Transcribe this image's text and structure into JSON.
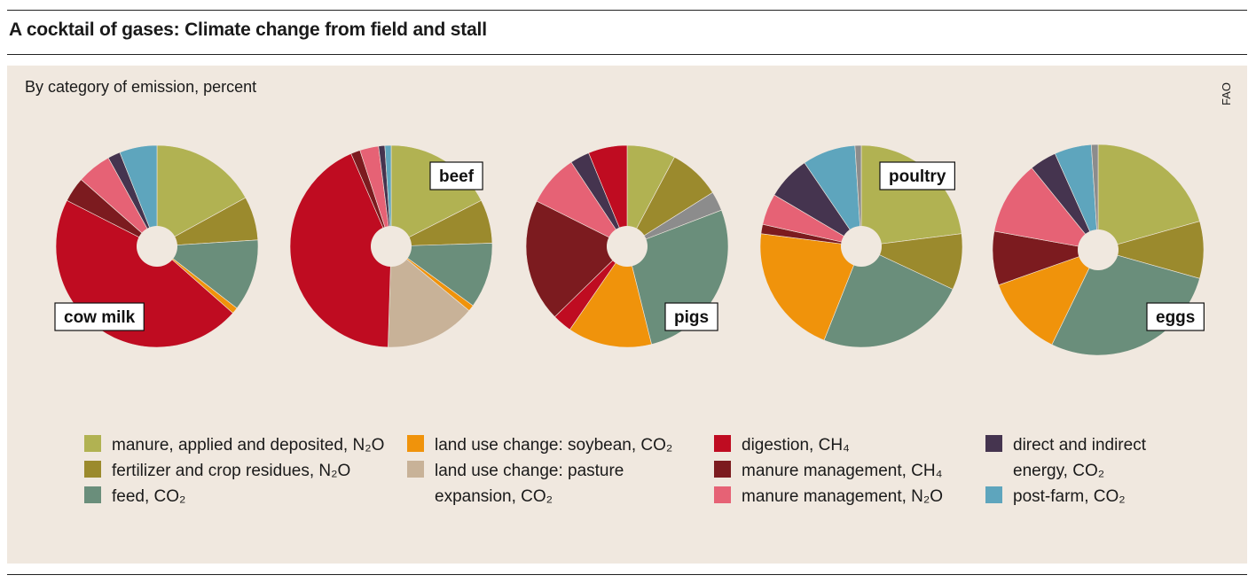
{
  "title": "A cocktail of gases: Climate change from field and stall",
  "subtitle": "By category of emission, percent",
  "source": "FAO",
  "colors": {
    "manure_n2o": "#b1b252",
    "fertilizer_n2o": "#9b8a2d",
    "feed_co2": "#6a8e7b",
    "soybean_co2": "#f0930b",
    "pasture_co2": "#c8b298",
    "digestion_ch4": "#bf0c21",
    "manure_mgmt_ch4": "#7c1b1f",
    "manure_mgmt_n2o": "#e66275",
    "energy_co2": "#45344f",
    "postfarm_co2": "#5ea5bd",
    "other": "#8c8c8c"
  },
  "legend": {
    "col1": [
      {
        "key": "manure_n2o",
        "label": "manure, applied and deposited, N₂O"
      },
      {
        "key": "fertilizer_n2o",
        "label": "fertilizer and crop residues, N₂O"
      },
      {
        "key": "feed_co2",
        "label": "feed, CO₂"
      }
    ],
    "col2": [
      {
        "key": "soybean_co2",
        "label": "land use change: soybean, CO₂"
      },
      {
        "key": "pasture_co2",
        "label": "land use change: pasture\nexpansion, CO₂"
      }
    ],
    "col3": [
      {
        "key": "digestion_ch4",
        "label": "digestion, CH₄"
      },
      {
        "key": "manure_mgmt_ch4",
        "label": "manure management, CH₄"
      },
      {
        "key": "manure_mgmt_n2o",
        "label": "manure management, N₂O"
      }
    ],
    "col4": [
      {
        "key": "energy_co2",
        "label": "direct and indirect\nenergy, CO₂"
      },
      {
        "key": "postfarm_co2",
        "label": "post-farm, CO₂"
      }
    ]
  },
  "chart_data": [
    {
      "type": "pie",
      "label": "cow milk",
      "slices": [
        {
          "key": "manure_n2o",
          "value": 17
        },
        {
          "key": "fertilizer_n2o",
          "value": 7
        },
        {
          "key": "feed_co2",
          "value": 11.5
        },
        {
          "key": "soybean_co2",
          "value": 1
        },
        {
          "key": "digestion_ch4",
          "value": 46
        },
        {
          "key": "manure_mgmt_ch4",
          "value": 4
        },
        {
          "key": "manure_mgmt_n2o",
          "value": 5.5
        },
        {
          "key": "energy_co2",
          "value": 2
        },
        {
          "key": "postfarm_co2",
          "value": 6
        }
      ]
    },
    {
      "type": "pie",
      "label": "beef",
      "slices": [
        {
          "key": "manure_n2o",
          "value": 17.5
        },
        {
          "key": "fertilizer_n2o",
          "value": 7
        },
        {
          "key": "feed_co2",
          "value": 10.5
        },
        {
          "key": "soybean_co2",
          "value": 1
        },
        {
          "key": "pasture_co2",
          "value": 14.5
        },
        {
          "key": "digestion_ch4",
          "value": 43
        },
        {
          "key": "manure_mgmt_ch4",
          "value": 1.5
        },
        {
          "key": "manure_mgmt_n2o",
          "value": 3
        },
        {
          "key": "energy_co2",
          "value": 1
        },
        {
          "key": "postfarm_co2",
          "value": 1
        }
      ]
    },
    {
      "type": "pie",
      "label": "pigs",
      "slices": [
        {
          "key": "manure_n2o",
          "value": 7.5
        },
        {
          "key": "fertilizer_n2o",
          "value": 8
        },
        {
          "key": "other",
          "value": 3
        },
        {
          "key": "feed_co2",
          "value": 26
        },
        {
          "key": "soybean_co2",
          "value": 13
        },
        {
          "key": "digestion_ch4",
          "value": 3
        },
        {
          "key": "manure_mgmt_ch4",
          "value": 19
        },
        {
          "key": "manure_mgmt_n2o",
          "value": 8
        },
        {
          "key": "energy_co2",
          "value": 3
        },
        {
          "key": "digestion_ch4",
          "value": 6
        }
      ]
    },
    {
      "type": "pie",
      "label": "poultry",
      "slices": [
        {
          "key": "manure_n2o",
          "value": 23
        },
        {
          "key": "fertilizer_n2o",
          "value": 9
        },
        {
          "key": "feed_co2",
          "value": 24
        },
        {
          "key": "soybean_co2",
          "value": 21
        },
        {
          "key": "manure_mgmt_ch4",
          "value": 1.5
        },
        {
          "key": "manure_mgmt_n2o",
          "value": 5
        },
        {
          "key": "energy_co2",
          "value": 7
        },
        {
          "key": "postfarm_co2",
          "value": 8.5
        },
        {
          "key": "other",
          "value": 1
        }
      ]
    },
    {
      "type": "pie",
      "label": "eggs",
      "slices": [
        {
          "key": "manure_n2o",
          "value": 20
        },
        {
          "key": "fertilizer_n2o",
          "value": 8.5
        },
        {
          "key": "feed_co2",
          "value": 27
        },
        {
          "key": "soybean_co2",
          "value": 12
        },
        {
          "key": "manure_mgmt_ch4",
          "value": 8
        },
        {
          "key": "manure_mgmt_n2o",
          "value": 11
        },
        {
          "key": "energy_co2",
          "value": 4
        },
        {
          "key": "postfarm_co2",
          "value": 5.5
        },
        {
          "key": "other",
          "value": 1
        }
      ]
    }
  ]
}
